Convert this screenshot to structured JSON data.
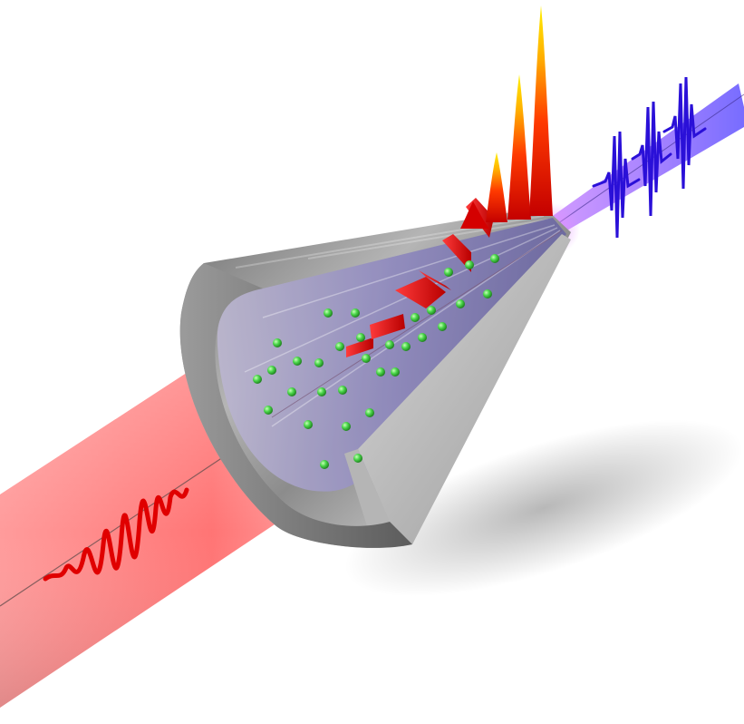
{
  "scene": {
    "colors": {
      "background": "#ffffff",
      "input_beam": "#ff2a2a",
      "input_pulse": "#e00000",
      "output_beam": "#6a4cff",
      "output_pulse": "#2a10d8",
      "cone_metal": "#8a8a8a",
      "particles": "#3fd23f",
      "harmonic_peak_top": "#f4e400",
      "harmonic_peak_base": "#d50000"
    },
    "icons": {
      "input": "red-laser-pulse-icon",
      "output": "blue-attosecond-pulse-train-icon",
      "cell": "metal-cone-cell-icon",
      "gas": "green-gas-atoms-icon",
      "spectrum": "harmonic-peaks-icon"
    }
  }
}
